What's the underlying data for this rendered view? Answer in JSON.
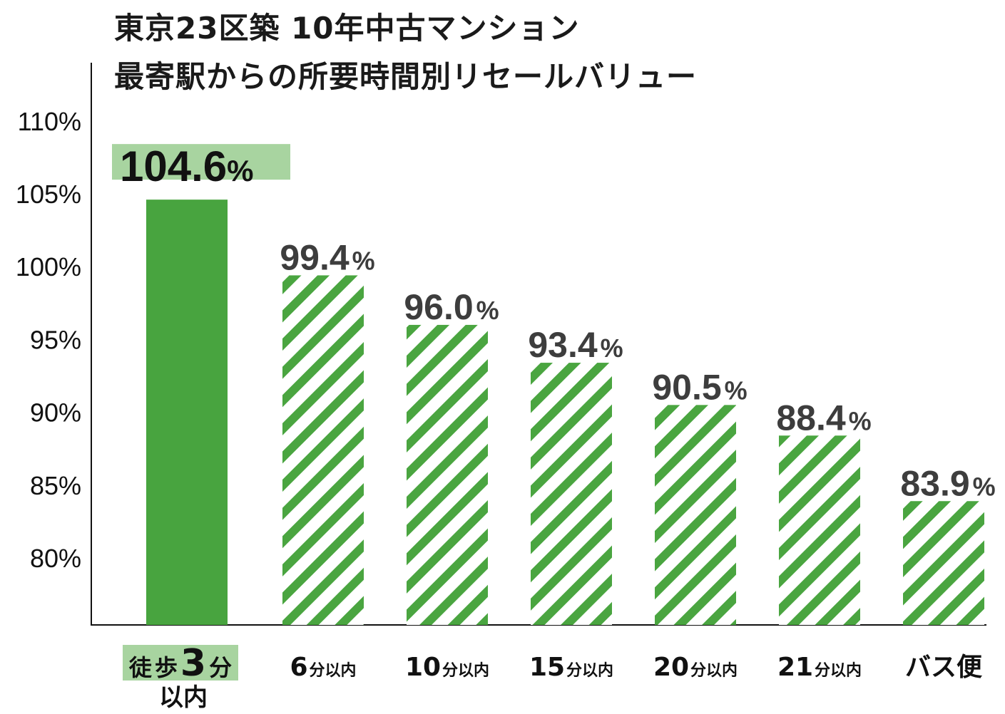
{
  "chart_data": {
    "type": "bar",
    "title": "東京23区築 10年中古マンション",
    "subtitle": "最寄駅からの所要時間別リセールバリュー",
    "categories": [
      "徒歩3分以内",
      "6分以内",
      "10分以内",
      "15分以内",
      "20分以内",
      "21分以内",
      "バス便"
    ],
    "category_labels": [
      {
        "parts": [
          "徒",
          "歩",
          "3",
          "分"
        ],
        "line2": "以内"
      },
      {
        "main": "6",
        "suffix": "分以内"
      },
      {
        "main": "10",
        "suffix": "分以内"
      },
      {
        "main": "15",
        "suffix": "分以内"
      },
      {
        "main": "20",
        "suffix": "分以内"
      },
      {
        "main": "21",
        "suffix": "分以内"
      },
      {
        "main": "バス便",
        "suffix": ""
      }
    ],
    "values": [
      104.6,
      99.4,
      96.0,
      93.4,
      90.5,
      88.4,
      83.9
    ],
    "value_labels": [
      "104.6",
      "99.4",
      "96.0",
      "93.4",
      "90.5",
      "88.4",
      "83.9"
    ],
    "value_unit": "%",
    "yticks": [
      "110%",
      "105%",
      "100%",
      "95%",
      "90%",
      "85%",
      "80%"
    ],
    "ytick_values": [
      110,
      105,
      100,
      95,
      90,
      85,
      80
    ],
    "ylim": [
      75.4,
      114
    ],
    "xlabel": "",
    "ylabel": "",
    "grid": false,
    "highlight_index": 0,
    "colors": {
      "bar_solid": "#48a43f",
      "bar_stripe": "#4aa540",
      "highlight_bg": "#a8d4a0",
      "value_text": "#3d3d3d"
    }
  }
}
